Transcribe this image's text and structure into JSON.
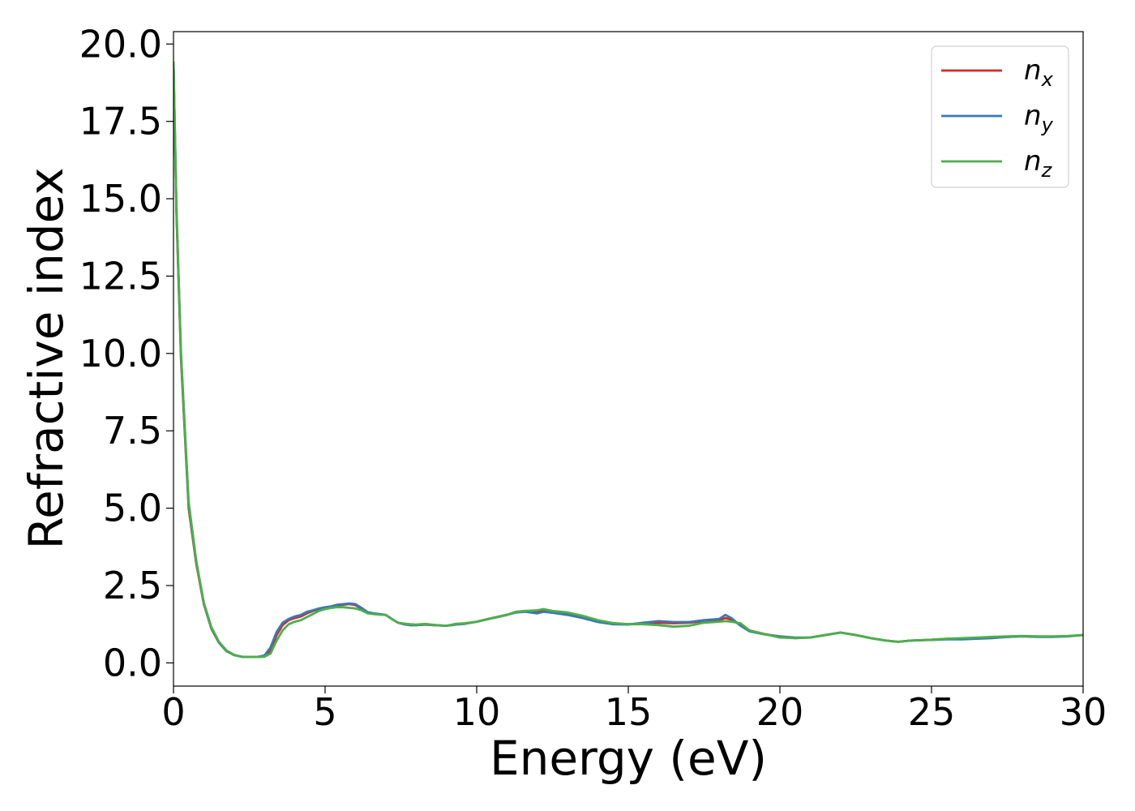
{
  "chart_data": {
    "type": "line",
    "title": "",
    "xlabel": "Energy (eV)",
    "ylabel": "Refractive index",
    "xlim": [
      0,
      30
    ],
    "ylim": [
      -0.75,
      20.4
    ],
    "xticks": [
      0,
      5,
      10,
      15,
      20,
      25,
      30
    ],
    "xtick_labels": [
      "0",
      "5",
      "10",
      "15",
      "20",
      "25",
      "30"
    ],
    "yticks": [
      0,
      2.5,
      5,
      7.5,
      10,
      12.5,
      15,
      17.5,
      20
    ],
    "ytick_labels": [
      "0.0",
      "2.5",
      "5.0",
      "7.5",
      "10.0",
      "12.5",
      "15.0",
      "17.5",
      "20.0"
    ],
    "grid": false,
    "legend_position": "top-right",
    "series": [
      {
        "name": "n_x",
        "legend_base": "n",
        "legend_sub": "x",
        "color": "#d62728",
        "x": [
          0,
          0.1,
          0.25,
          0.5,
          0.75,
          1.0,
          1.25,
          1.5,
          1.75,
          2.0,
          2.25,
          2.5,
          2.75,
          3.0,
          3.2,
          3.4,
          3.6,
          3.8,
          4.0,
          4.2,
          4.4,
          4.6,
          4.8,
          5.0,
          5.2,
          5.4,
          5.6,
          5.8,
          6.0,
          6.2,
          6.4,
          6.6,
          6.8,
          7.0,
          7.2,
          7.4,
          7.6,
          7.8,
          8.0,
          8.3,
          8.6,
          9.0,
          9.3,
          9.6,
          10.0,
          10.5,
          11.0,
          11.3,
          11.6,
          12.0,
          12.2,
          12.5,
          13.0,
          13.5,
          14.0,
          14.5,
          15.0,
          15.5,
          16.0,
          16.5,
          17.0,
          17.5,
          18.0,
          18.2,
          18.4,
          18.7,
          19.0,
          19.5,
          20.0,
          20.5,
          21.0,
          21.5,
          22.0,
          22.5,
          23.0,
          23.5,
          23.9,
          24.3,
          25.0,
          25.5,
          26.0,
          26.5,
          27.0,
          27.5,
          28.0,
          28.5,
          29.0,
          29.5,
          30.0
        ],
        "y": [
          19.4,
          14.5,
          9.8,
          5.0,
          3.2,
          1.9,
          1.1,
          0.65,
          0.38,
          0.25,
          0.2,
          0.19,
          0.19,
          0.22,
          0.4,
          0.9,
          1.22,
          1.38,
          1.45,
          1.5,
          1.6,
          1.68,
          1.74,
          1.78,
          1.82,
          1.86,
          1.88,
          1.9,
          1.87,
          1.75,
          1.62,
          1.58,
          1.57,
          1.55,
          1.42,
          1.3,
          1.25,
          1.22,
          1.22,
          1.24,
          1.22,
          1.2,
          1.24,
          1.27,
          1.33,
          1.45,
          1.55,
          1.65,
          1.68,
          1.65,
          1.68,
          1.65,
          1.6,
          1.48,
          1.36,
          1.27,
          1.25,
          1.28,
          1.3,
          1.28,
          1.3,
          1.35,
          1.38,
          1.45,
          1.4,
          1.22,
          1.05,
          0.93,
          0.85,
          0.8,
          0.82,
          0.9,
          0.98,
          0.9,
          0.8,
          0.72,
          0.68,
          0.72,
          0.75,
          0.78,
          0.78,
          0.8,
          0.82,
          0.84,
          0.86,
          0.85,
          0.85,
          0.86,
          0.9
        ]
      },
      {
        "name": "n_y",
        "legend_base": "n",
        "legend_sub": "y",
        "color": "#3a78b5",
        "x": [
          0,
          0.1,
          0.25,
          0.5,
          0.75,
          1.0,
          1.25,
          1.5,
          1.75,
          2.0,
          2.25,
          2.5,
          2.75,
          3.0,
          3.2,
          3.4,
          3.6,
          3.8,
          4.0,
          4.2,
          4.4,
          4.6,
          4.8,
          5.0,
          5.2,
          5.4,
          5.6,
          5.8,
          6.0,
          6.2,
          6.4,
          6.6,
          6.8,
          7.0,
          7.2,
          7.4,
          7.6,
          7.8,
          8.0,
          8.3,
          8.6,
          9.0,
          9.3,
          9.6,
          10.0,
          10.5,
          11.0,
          11.3,
          11.6,
          12.0,
          12.2,
          12.5,
          13.0,
          13.5,
          14.0,
          14.5,
          15.0,
          15.5,
          16.0,
          16.5,
          17.0,
          17.5,
          18.0,
          18.2,
          18.4,
          18.7,
          19.0,
          19.5,
          20.0,
          20.5,
          21.0,
          21.5,
          22.0,
          22.5,
          23.0,
          23.5,
          23.9,
          24.3,
          25.0,
          25.5,
          26.0,
          26.5,
          27.0,
          27.5,
          28.0,
          28.5,
          29.0,
          29.5,
          30.0
        ],
        "y": [
          19.4,
          14.6,
          9.9,
          5.1,
          3.25,
          1.92,
          1.12,
          0.66,
          0.38,
          0.25,
          0.2,
          0.19,
          0.19,
          0.24,
          0.5,
          1.0,
          1.3,
          1.42,
          1.5,
          1.55,
          1.65,
          1.7,
          1.76,
          1.8,
          1.83,
          1.88,
          1.9,
          1.92,
          1.9,
          1.78,
          1.64,
          1.6,
          1.58,
          1.55,
          1.42,
          1.3,
          1.25,
          1.22,
          1.22,
          1.24,
          1.22,
          1.2,
          1.24,
          1.26,
          1.33,
          1.44,
          1.55,
          1.63,
          1.65,
          1.6,
          1.65,
          1.62,
          1.55,
          1.45,
          1.32,
          1.25,
          1.24,
          1.3,
          1.35,
          1.32,
          1.32,
          1.38,
          1.42,
          1.55,
          1.45,
          1.2,
          1.02,
          0.92,
          0.86,
          0.82,
          0.82,
          0.9,
          0.98,
          0.9,
          0.8,
          0.72,
          0.68,
          0.72,
          0.74,
          0.76,
          0.76,
          0.78,
          0.8,
          0.84,
          0.86,
          0.84,
          0.84,
          0.86,
          0.9
        ]
      },
      {
        "name": "n_z",
        "legend_base": "n",
        "legend_sub": "z",
        "color": "#4daf4a",
        "x": [
          0,
          0.1,
          0.25,
          0.5,
          0.75,
          1.0,
          1.25,
          1.5,
          1.75,
          2.0,
          2.25,
          2.5,
          2.75,
          3.0,
          3.2,
          3.4,
          3.6,
          3.8,
          4.0,
          4.2,
          4.4,
          4.6,
          4.8,
          5.0,
          5.2,
          5.4,
          5.6,
          5.8,
          6.0,
          6.2,
          6.4,
          6.6,
          6.8,
          7.0,
          7.2,
          7.4,
          7.6,
          7.8,
          8.0,
          8.3,
          8.6,
          9.0,
          9.3,
          9.6,
          10.0,
          10.5,
          11.0,
          11.3,
          11.6,
          12.0,
          12.2,
          12.5,
          13.0,
          13.5,
          14.0,
          14.5,
          15.0,
          15.5,
          16.0,
          16.5,
          17.0,
          17.5,
          18.0,
          18.2,
          18.4,
          18.7,
          19.0,
          19.5,
          20.0,
          20.5,
          21.0,
          21.5,
          22.0,
          22.5,
          23.0,
          23.5,
          23.9,
          24.3,
          25.0,
          25.5,
          26.0,
          26.5,
          27.0,
          27.5,
          28.0,
          28.5,
          29.0,
          29.5,
          30.0
        ],
        "y": [
          19.4,
          14.7,
          10.0,
          5.2,
          3.3,
          1.95,
          1.15,
          0.68,
          0.4,
          0.26,
          0.2,
          0.19,
          0.19,
          0.2,
          0.3,
          0.72,
          1.05,
          1.25,
          1.33,
          1.38,
          1.48,
          1.58,
          1.68,
          1.74,
          1.78,
          1.8,
          1.8,
          1.78,
          1.76,
          1.7,
          1.6,
          1.58,
          1.56,
          1.55,
          1.42,
          1.3,
          1.27,
          1.25,
          1.24,
          1.26,
          1.23,
          1.2,
          1.26,
          1.28,
          1.33,
          1.45,
          1.56,
          1.65,
          1.68,
          1.7,
          1.74,
          1.68,
          1.63,
          1.52,
          1.38,
          1.29,
          1.25,
          1.25,
          1.22,
          1.17,
          1.2,
          1.3,
          1.33,
          1.35,
          1.33,
          1.28,
          1.05,
          0.93,
          0.82,
          0.8,
          0.82,
          0.9,
          0.98,
          0.9,
          0.8,
          0.72,
          0.68,
          0.72,
          0.75,
          0.78,
          0.8,
          0.82,
          0.84,
          0.86,
          0.87,
          0.86,
          0.86,
          0.87,
          0.9
        ]
      }
    ]
  }
}
